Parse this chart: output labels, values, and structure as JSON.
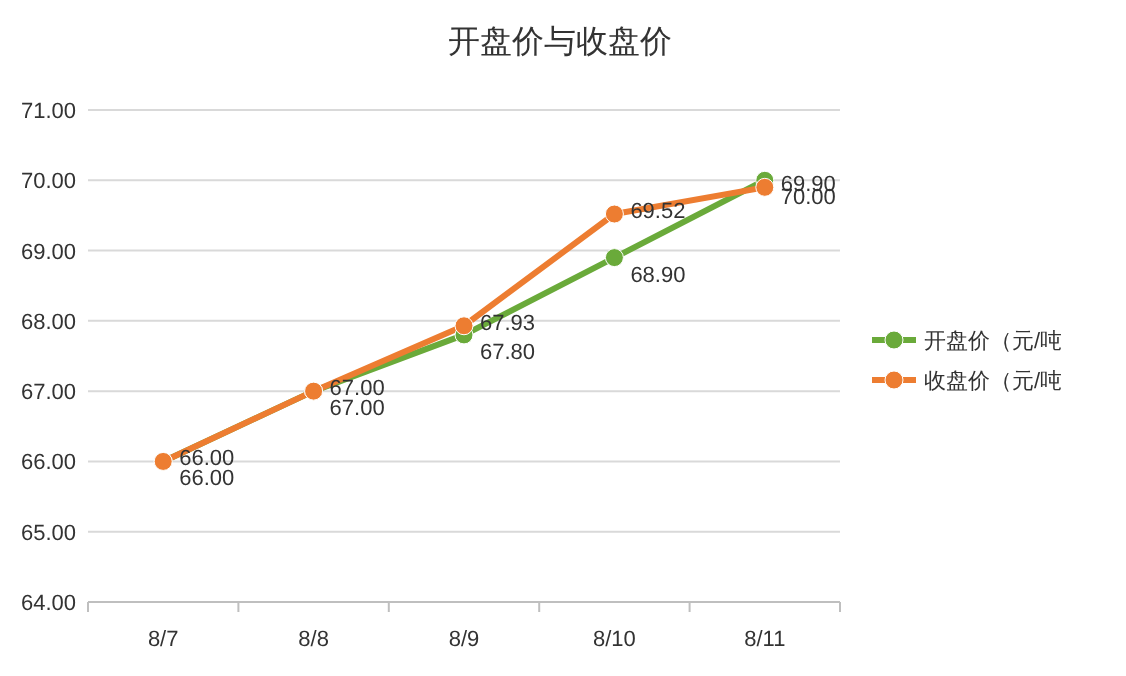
{
  "chart_data": {
    "type": "line",
    "title": "开盘价与收盘价",
    "categories": [
      "8/7",
      "8/8",
      "8/9",
      "8/10",
      "8/11"
    ],
    "series": [
      {
        "name": "开盘价（元/吨",
        "color": "#6aaa3a",
        "values": [
          66.0,
          67.0,
          67.8,
          68.9,
          70.0
        ],
        "value_labels": [
          "66.00",
          "67.00",
          "67.80",
          "68.90",
          "70.00"
        ]
      },
      {
        "name": "收盘价（元/吨",
        "color": "#ed7d31",
        "values": [
          66.0,
          67.0,
          67.93,
          69.52,
          69.9
        ],
        "value_labels": [
          "66.00",
          "67.00",
          "67.93",
          "69.52",
          "69.90"
        ]
      }
    ],
    "ylim": [
      64,
      71
    ],
    "yticks": [
      {
        "value": 64,
        "label": "64.00"
      },
      {
        "value": 65,
        "label": "65.00"
      },
      {
        "value": 66,
        "label": "66.00"
      },
      {
        "value": 67,
        "label": "67.00"
      },
      {
        "value": 68,
        "label": "68.00"
      },
      {
        "value": 69,
        "label": "69.00"
      },
      {
        "value": 70,
        "label": "70.00"
      },
      {
        "value": 71,
        "label": "71.00"
      }
    ],
    "grid": "y",
    "legend": "right",
    "marker": "circle",
    "line_style": "solid"
  }
}
